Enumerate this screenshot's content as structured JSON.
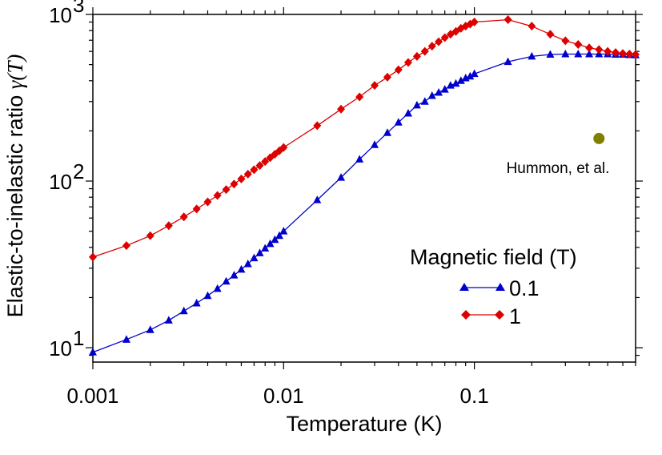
{
  "chart_data": {
    "type": "line",
    "xlabel": "Temperature (K)",
    "ylabel_text": "Elastic-to-inelastic ratio ",
    "ylabel_symbol": "γ(T)",
    "x_scale": "log",
    "y_scale": "log",
    "xlim": [
      0.001,
      0.7
    ],
    "ylim": [
      8.2,
      1000
    ],
    "x_ticks": [
      {
        "value": 0.001,
        "label": "0.001"
      },
      {
        "value": 0.01,
        "label": "0.01"
      },
      {
        "value": 0.1,
        "label": "0.1"
      }
    ],
    "y_ticks": [
      {
        "value": 10,
        "base": "10",
        "exp": "1"
      },
      {
        "value": 100,
        "base": "10",
        "exp": "2"
      },
      {
        "value": 1000,
        "base": "10",
        "exp": "3"
      }
    ],
    "grid": false,
    "legend": {
      "title": "Magnetic field (T)",
      "placement": "lower-right"
    },
    "series": [
      {
        "name": "0.1",
        "color": "#0000cc",
        "marker": "triangle",
        "x": [
          0.001,
          0.0015,
          0.002,
          0.0025,
          0.003,
          0.0035,
          0.004,
          0.0045,
          0.005,
          0.0055,
          0.006,
          0.0065,
          0.007,
          0.0075,
          0.008,
          0.0085,
          0.009,
          0.0095,
          0.01,
          0.015,
          0.02,
          0.025,
          0.03,
          0.035,
          0.04,
          0.045,
          0.05,
          0.055,
          0.06,
          0.065,
          0.07,
          0.075,
          0.08,
          0.085,
          0.09,
          0.095,
          0.1,
          0.15,
          0.2,
          0.25,
          0.3,
          0.35,
          0.4,
          0.45,
          0.5,
          0.55,
          0.6,
          0.65,
          0.7
        ],
        "values": [
          9.4,
          11.2,
          12.8,
          14.6,
          16.6,
          18.5,
          20.5,
          22.6,
          25,
          27.2,
          29.5,
          31.8,
          34.5,
          37,
          39.5,
          42,
          44.5,
          47,
          50,
          77,
          105,
          135,
          165,
          195,
          225,
          255,
          285,
          300,
          325,
          340,
          355,
          375,
          385,
          400,
          415,
          425,
          440,
          520,
          560,
          575,
          578,
          578,
          578,
          578,
          578,
          575,
          575,
          572,
          570
        ]
      },
      {
        "name": "1",
        "color": "#dd0000",
        "marker": "diamond",
        "x": [
          0.001,
          0.0015,
          0.002,
          0.0025,
          0.003,
          0.0035,
          0.004,
          0.0045,
          0.005,
          0.0055,
          0.006,
          0.0065,
          0.007,
          0.0075,
          0.008,
          0.0085,
          0.009,
          0.0095,
          0.01,
          0.015,
          0.02,
          0.025,
          0.03,
          0.035,
          0.04,
          0.045,
          0.05,
          0.055,
          0.06,
          0.065,
          0.07,
          0.075,
          0.08,
          0.085,
          0.09,
          0.095,
          0.1,
          0.15,
          0.2,
          0.25,
          0.3,
          0.35,
          0.4,
          0.45,
          0.5,
          0.55,
          0.6,
          0.65,
          0.7
        ],
        "values": [
          35,
          41,
          47,
          54,
          61,
          68,
          75,
          82,
          89,
          96,
          103,
          110,
          117,
          124,
          131,
          138,
          145,
          152,
          159,
          215,
          270,
          320,
          375,
          420,
          465,
          515,
          560,
          600,
          645,
          685,
          725,
          760,
          790,
          825,
          850,
          875,
          900,
          930,
          850,
          760,
          695,
          660,
          630,
          615,
          600,
          590,
          583,
          578,
          575
        ]
      }
    ],
    "annotation_point": {
      "x": 0.45,
      "y": 180,
      "color": "#808000"
    },
    "annotation_text": "Hummon, et al."
  }
}
